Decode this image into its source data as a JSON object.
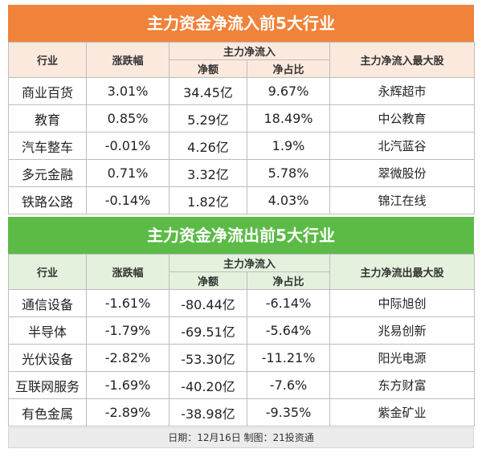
{
  "inflow": {
    "title": "主力资金净流入前5大行业",
    "headers": {
      "industry": "行业",
      "change": "涨跌幅",
      "net_group": "主力净流入",
      "net_amount": "净额",
      "net_ratio": "净占比",
      "top_stock": "主力净流入最大股"
    },
    "rows": [
      {
        "industry": "商业百货",
        "change": "3.01%",
        "amount": "34.45亿",
        "ratio": "9.67%",
        "stock": "永辉超市"
      },
      {
        "industry": "教育",
        "change": "0.85%",
        "amount": "5.29亿",
        "ratio": "18.49%",
        "stock": "中公教育"
      },
      {
        "industry": "汽车整车",
        "change": "-0.01%",
        "amount": "4.26亿",
        "ratio": "1.9%",
        "stock": "北汽蓝谷"
      },
      {
        "industry": "多元金融",
        "change": "0.71%",
        "amount": "3.32亿",
        "ratio": "5.78%",
        "stock": "翠微股份"
      },
      {
        "industry": "铁路公路",
        "change": "-0.14%",
        "amount": "1.82亿",
        "ratio": "4.03%",
        "stock": "锦江在线"
      }
    ]
  },
  "outflow": {
    "title": "主力资金净流出前5大行业",
    "headers": {
      "industry": "行业",
      "change": "涨跌幅",
      "net_group": "主力净流入",
      "net_amount": "净额",
      "net_ratio": "净占比",
      "top_stock": "主力净流出最大股"
    },
    "rows": [
      {
        "industry": "通信设备",
        "change": "-1.61%",
        "amount": "-80.44亿",
        "ratio": "-6.14%",
        "stock": "中际旭创"
      },
      {
        "industry": "半导体",
        "change": "-1.79%",
        "amount": "-69.51亿",
        "ratio": "-5.64%",
        "stock": "兆易创新"
      },
      {
        "industry": "光伏设备",
        "change": "-2.82%",
        "amount": "-53.30亿",
        "ratio": "-11.21%",
        "stock": "阳光电源"
      },
      {
        "industry": "互联网服务",
        "change": "-1.69%",
        "amount": "-40.20亿",
        "ratio": "-7.6%",
        "stock": "东方财富"
      },
      {
        "industry": "有色金属",
        "change": "-2.89%",
        "amount": "-38.98亿",
        "ratio": "-9.35%",
        "stock": "紫金矿业"
      }
    ]
  },
  "footer": "日期：12月16日 制图：21投资通",
  "colors": {
    "inflow_banner": "#f0823a",
    "outflow_banner": "#5bbb46"
  }
}
